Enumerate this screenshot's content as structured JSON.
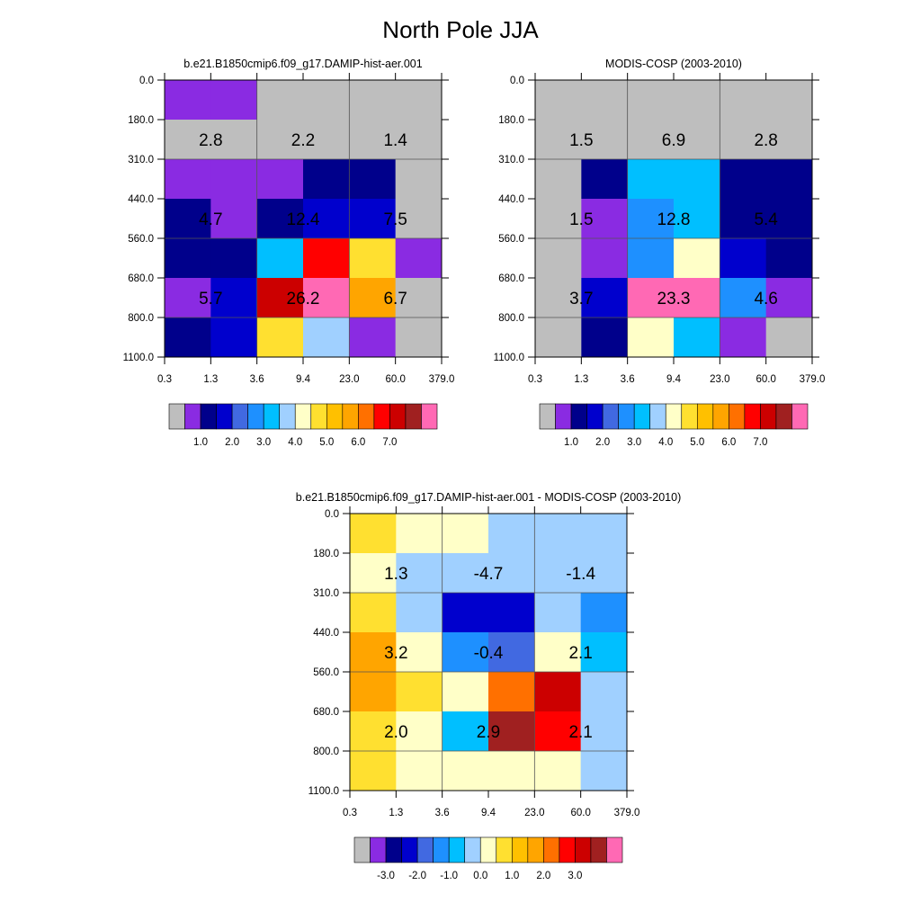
{
  "title": "North Pole JJA",
  "chart_data": [
    {
      "type": "heatmap",
      "title": "b.e21.B1850cmip6.f09_g17.DAMIP-hist-aer.001",
      "x_ticks": [
        "0.3",
        "1.3",
        "3.6",
        "9.4",
        "23.0",
        "60.0",
        "379.0"
      ],
      "y_ticks": [
        "0.0",
        "180.0",
        "310.0",
        "440.0",
        "560.0",
        "680.0",
        "800.0",
        "1100.0"
      ],
      "colorbar": {
        "colors": [
          "#bebebe",
          "#8a2be2",
          "#00008b",
          "#0000cd",
          "#4169e1",
          "#1e90ff",
          "#00bfff",
          "#a0d0ff",
          "#ffffc8",
          "#ffe030",
          "#ffc000",
          "#ffa500",
          "#ff7000",
          "#ff0000",
          "#cc0000",
          "#a02020",
          "#ff69b4"
        ],
        "labels": [
          "1.0",
          "2.0",
          "3.0",
          "4.0",
          "5.0",
          "6.0",
          "7.0"
        ],
        "label_start_edge": 2
      },
      "grid": [
        [
          "#8a2be2",
          "#8a2be2",
          "#bebebe",
          "#bebebe",
          "#bebebe",
          "#bebebe"
        ],
        [
          "#bebebe",
          "#bebebe",
          "#bebebe",
          "#bebebe",
          "#bebebe",
          "#bebebe"
        ],
        [
          "#8a2be2",
          "#8a2be2",
          "#8a2be2",
          "#00008b",
          "#00008b",
          "#bebebe"
        ],
        [
          "#00008b",
          "#8a2be2",
          "#00008b",
          "#0000cd",
          "#0000cd",
          "#bebebe"
        ],
        [
          "#00008b",
          "#00008b",
          "#00bfff",
          "#ff0000",
          "#ffe030",
          "#8a2be2"
        ],
        [
          "#8a2be2",
          "#0000cd",
          "#cc0000",
          "#ff69b4",
          "#ffa500",
          "#bebebe"
        ],
        [
          "#00008b",
          "#0000cd",
          "#ffe030",
          "#a0d0ff",
          "#8a2be2",
          "#bebebe"
        ]
      ],
      "annotations": [
        {
          "row": 1,
          "col": 0,
          "text": "2.8"
        },
        {
          "row": 1,
          "col": 1,
          "text": "2.2"
        },
        {
          "row": 1,
          "col": 2,
          "text": "1.4"
        },
        {
          "row": 3,
          "col": 0,
          "text": "4.7"
        },
        {
          "row": 3,
          "col": 1,
          "text": "12.4"
        },
        {
          "row": 3,
          "col": 2,
          "text": "7.5"
        },
        {
          "row": 5,
          "col": 0,
          "text": "5.7"
        },
        {
          "row": 5,
          "col": 1,
          "text": "26.2"
        },
        {
          "row": 5,
          "col": 2,
          "text": "6.7"
        }
      ]
    },
    {
      "type": "heatmap",
      "title": "MODIS-COSP (2003-2010)",
      "x_ticks": [
        "0.3",
        "1.3",
        "3.6",
        "9.4",
        "23.0",
        "60.0",
        "379.0"
      ],
      "y_ticks": [
        "0.0",
        "180.0",
        "310.0",
        "440.0",
        "560.0",
        "680.0",
        "800.0",
        "1100.0"
      ],
      "colorbar": {
        "colors": [
          "#bebebe",
          "#8a2be2",
          "#00008b",
          "#0000cd",
          "#4169e1",
          "#1e90ff",
          "#00bfff",
          "#a0d0ff",
          "#ffffc8",
          "#ffe030",
          "#ffc000",
          "#ffa500",
          "#ff7000",
          "#ff0000",
          "#cc0000",
          "#a02020",
          "#ff69b4"
        ],
        "labels": [
          "1.0",
          "2.0",
          "3.0",
          "4.0",
          "5.0",
          "6.0",
          "7.0"
        ],
        "label_start_edge": 2
      },
      "grid": [
        [
          "#bebebe",
          "#bebebe",
          "#bebebe",
          "#bebebe",
          "#bebebe",
          "#bebebe"
        ],
        [
          "#bebebe",
          "#bebebe",
          "#bebebe",
          "#bebebe",
          "#bebebe",
          "#bebebe"
        ],
        [
          "#bebebe",
          "#00008b",
          "#00bfff",
          "#00bfff",
          "#00008b",
          "#00008b"
        ],
        [
          "#bebebe",
          "#8a2be2",
          "#1e90ff",
          "#00bfff",
          "#00008b",
          "#00008b"
        ],
        [
          "#bebebe",
          "#8a2be2",
          "#1e90ff",
          "#ffffc8",
          "#0000cd",
          "#00008b"
        ],
        [
          "#bebebe",
          "#0000cd",
          "#ff69b4",
          "#ff69b4",
          "#1e90ff",
          "#8a2be2"
        ],
        [
          "#bebebe",
          "#00008b",
          "#ffffc8",
          "#00bfff",
          "#8a2be2",
          "#bebebe"
        ]
      ],
      "annotations": [
        {
          "row": 1,
          "col": 0,
          "text": "1.5"
        },
        {
          "row": 1,
          "col": 1,
          "text": "6.9"
        },
        {
          "row": 1,
          "col": 2,
          "text": "2.8"
        },
        {
          "row": 3,
          "col": 0,
          "text": "1.5"
        },
        {
          "row": 3,
          "col": 1,
          "text": "12.8"
        },
        {
          "row": 3,
          "col": 2,
          "text": "5.4"
        },
        {
          "row": 5,
          "col": 0,
          "text": "3.7"
        },
        {
          "row": 5,
          "col": 1,
          "text": "23.3"
        },
        {
          "row": 5,
          "col": 2,
          "text": "4.6"
        }
      ]
    },
    {
      "type": "heatmap",
      "title": "b.e21.B1850cmip6.f09_g17.DAMIP-hist-aer.001 - MODIS-COSP (2003-2010)",
      "x_ticks": [
        "0.3",
        "1.3",
        "3.6",
        "9.4",
        "23.0",
        "60.0",
        "379.0"
      ],
      "y_ticks": [
        "0.0",
        "180.0",
        "310.0",
        "440.0",
        "560.0",
        "680.0",
        "800.0",
        "1100.0"
      ],
      "colorbar": {
        "colors": [
          "#bebebe",
          "#8a2be2",
          "#00008b",
          "#0000cd",
          "#4169e1",
          "#1e90ff",
          "#00bfff",
          "#a0d0ff",
          "#ffffc8",
          "#ffe030",
          "#ffc000",
          "#ffa500",
          "#ff7000",
          "#ff0000",
          "#cc0000",
          "#a02020",
          "#ff69b4"
        ],
        "labels": [
          "-3.0",
          "-2.0",
          "-1.0",
          "0.0",
          "1.0",
          "2.0",
          "3.0"
        ],
        "label_start_edge": 2
      },
      "grid": [
        [
          "#ffe030",
          "#ffffc8",
          "#ffffc8",
          "#a0d0ff",
          "#a0d0ff",
          "#a0d0ff"
        ],
        [
          "#ffffc8",
          "#a0d0ff",
          "#a0d0ff",
          "#a0d0ff",
          "#a0d0ff",
          "#a0d0ff"
        ],
        [
          "#ffe030",
          "#a0d0ff",
          "#0000cd",
          "#0000cd",
          "#a0d0ff",
          "#1e90ff"
        ],
        [
          "#ffa500",
          "#ffffc8",
          "#1e90ff",
          "#4169e1",
          "#ffffc8",
          "#00bfff"
        ],
        [
          "#ffa500",
          "#ffe030",
          "#ffffc8",
          "#ff7000",
          "#cc0000",
          "#a0d0ff"
        ],
        [
          "#ffe030",
          "#ffffc8",
          "#00bfff",
          "#a02020",
          "#ff0000",
          "#a0d0ff"
        ],
        [
          "#ffe030",
          "#ffffc8",
          "#ffffc8",
          "#ffffc8",
          "#ffffc8",
          "#a0d0ff"
        ]
      ],
      "annotations": [
        {
          "row": 1,
          "col": 0,
          "text": "1.3"
        },
        {
          "row": 1,
          "col": 1,
          "text": "-4.7"
        },
        {
          "row": 1,
          "col": 2,
          "text": "-1.4"
        },
        {
          "row": 3,
          "col": 0,
          "text": "3.2"
        },
        {
          "row": 3,
          "col": 1,
          "text": "-0.4"
        },
        {
          "row": 3,
          "col": 2,
          "text": "2.1"
        },
        {
          "row": 5,
          "col": 0,
          "text": "2.0"
        },
        {
          "row": 5,
          "col": 1,
          "text": "2.9"
        },
        {
          "row": 5,
          "col": 2,
          "text": "2.1"
        }
      ]
    }
  ]
}
